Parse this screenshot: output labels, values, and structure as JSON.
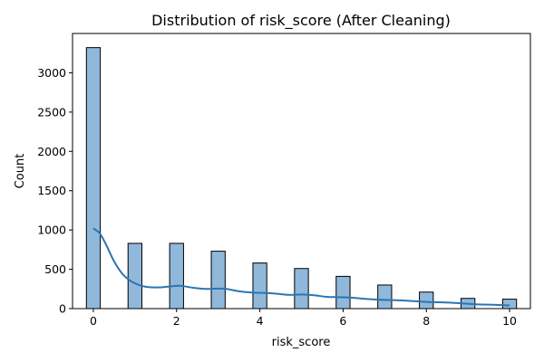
{
  "chart_data": {
    "type": "bar",
    "title": "Distribution of risk_score (After Cleaning)",
    "xlabel": "risk_score",
    "ylabel": "Count",
    "xlim": [
      -0.5,
      10.5
    ],
    "ylim": [
      0,
      3500
    ],
    "xticks": [
      "0",
      "2",
      "4",
      "6",
      "8",
      "10"
    ],
    "yticks": [
      "0",
      "500",
      "1000",
      "1500",
      "2000",
      "2500",
      "3000"
    ],
    "bar_width": 0.3333,
    "bars": [
      {
        "x": 0,
        "value": 3320
      },
      {
        "x": 1,
        "value": 830
      },
      {
        "x": 2,
        "value": 830
      },
      {
        "x": 3,
        "value": 730
      },
      {
        "x": 4,
        "value": 580
      },
      {
        "x": 5,
        "value": 510
      },
      {
        "x": 6,
        "value": 410
      },
      {
        "x": 7,
        "value": 300
      },
      {
        "x": 8,
        "value": 210
      },
      {
        "x": 9,
        "value": 130
      },
      {
        "x": 10,
        "value": 120
      }
    ],
    "kde": {
      "x": [
        0,
        0.15,
        0.3,
        0.5,
        0.7,
        0.9,
        1.1,
        1.3,
        1.6,
        1.9,
        2.1,
        2.4,
        2.7,
        3.0,
        3.2,
        3.5,
        3.8,
        4.1,
        4.4,
        4.7,
        5.0,
        5.3,
        5.6,
        5.9,
        6.2,
        6.5,
        6.8,
        7.1,
        7.4,
        7.7,
        8.0,
        8.3,
        8.6,
        8.9,
        9.2,
        9.5,
        9.8,
        10.0
      ],
      "y": [
        1020,
        960,
        820,
        600,
        440,
        350,
        300,
        275,
        270,
        285,
        290,
        265,
        250,
        255,
        250,
        220,
        205,
        200,
        190,
        175,
        180,
        170,
        150,
        145,
        140,
        125,
        115,
        110,
        105,
        95,
        85,
        80,
        75,
        65,
        55,
        50,
        45,
        40
      ]
    },
    "colors": {
      "bar_fill": "#8fb8da",
      "bar_edge": "#000000",
      "line": "#2b75b3"
    },
    "grid": false,
    "legend": "none"
  }
}
